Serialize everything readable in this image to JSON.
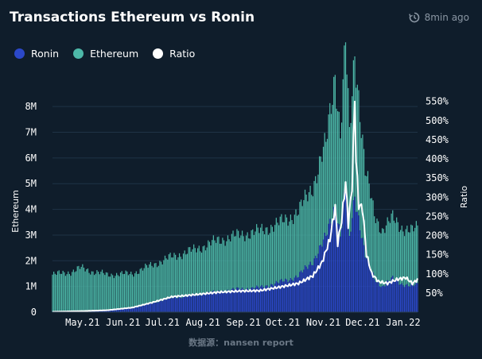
{
  "header": {
    "title": "Transactions Ethereum vs Ronin",
    "updated": "8min ago",
    "updated_icon": "history-icon"
  },
  "source": "数据源：nansen report",
  "colors": {
    "background": "#0f1d2b",
    "ronin": "#2b48c9",
    "ethereum": "#4db8a8",
    "ratio": "#ffffff",
    "grid": "#1f3346"
  },
  "chart_data": {
    "type": "bar",
    "stacked": true,
    "title": "Transactions Ethereum vs Ronin",
    "y_left": {
      "label": "Ethereum",
      "ticks": [
        "0",
        "1M",
        "2M",
        "3M",
        "4M",
        "5M",
        "6M",
        "7M",
        "8M"
      ],
      "range": [
        0,
        8500000
      ]
    },
    "y_right": {
      "label": "Ratio",
      "ticks": [
        "50%",
        "100%",
        "150%",
        "200%",
        "250%",
        "300%",
        "350%",
        "400%",
        "450%",
        "500%",
        "550%"
      ],
      "range": [
        0,
        570
      ]
    },
    "x_ticks": [
      "May.21",
      "Jun.21",
      "Jul.21",
      "Aug.21",
      "Sep.21",
      "Oct.21",
      "Nov.21",
      "Dec.21",
      "Jan.22"
    ],
    "x_range": [
      "2021-04-20",
      "2022-01-24"
    ],
    "grid": true,
    "legend_position": "top-left",
    "series": [
      {
        "name": "Ronin",
        "kind": "bar",
        "keypoints": [
          [
            "2021-04-20",
            10000
          ],
          [
            "2021-05-15",
            30000
          ],
          [
            "2021-06-01",
            60000
          ],
          [
            "2021-06-20",
            150000
          ],
          [
            "2021-07-05",
            350000
          ],
          [
            "2021-07-20",
            550000
          ],
          [
            "2021-08-05",
            650000
          ],
          [
            "2021-08-25",
            800000
          ],
          [
            "2021-09-10",
            900000
          ],
          [
            "2021-09-25",
            950000
          ],
          [
            "2021-10-10",
            1150000
          ],
          [
            "2021-10-25",
            1400000
          ],
          [
            "2021-11-05",
            2000000
          ],
          [
            "2021-11-15",
            2900000
          ],
          [
            "2021-11-22",
            4200000
          ],
          [
            "2021-11-26",
            3000000
          ],
          [
            "2021-11-30",
            4800000
          ],
          [
            "2021-12-03",
            2800000
          ],
          [
            "2021-12-07",
            4600000
          ],
          [
            "2021-12-10",
            3700000
          ],
          [
            "2021-12-15",
            2200000
          ],
          [
            "2021-12-22",
            1300000
          ],
          [
            "2021-12-28",
            1000000
          ],
          [
            "2022-01-05",
            1300000
          ],
          [
            "2022-01-12",
            1100000
          ],
          [
            "2022-01-20",
            1000000
          ],
          [
            "2022-01-24",
            1100000
          ]
        ]
      },
      {
        "name": "Ethereum",
        "kind": "bar",
        "keypoints": [
          [
            "2021-04-20",
            1450000
          ],
          [
            "2021-05-05",
            1550000
          ],
          [
            "2021-05-12",
            1700000
          ],
          [
            "2021-05-20",
            1550000
          ],
          [
            "2021-06-01",
            1400000
          ],
          [
            "2021-06-20",
            1350000
          ],
          [
            "2021-07-01",
            1450000
          ],
          [
            "2021-07-20",
            1600000
          ],
          [
            "2021-08-05",
            1750000
          ],
          [
            "2021-08-25",
            2000000
          ],
          [
            "2021-09-10",
            2100000
          ],
          [
            "2021-09-25",
            2200000
          ],
          [
            "2021-10-10",
            2300000
          ],
          [
            "2021-10-25",
            2500000
          ],
          [
            "2021-11-05",
            2950000
          ],
          [
            "2021-11-15",
            3600000
          ],
          [
            "2021-11-22",
            5200000
          ],
          [
            "2021-11-26",
            3900000
          ],
          [
            "2021-11-30",
            5700000
          ],
          [
            "2021-12-03",
            4000000
          ],
          [
            "2021-12-07",
            5600000
          ],
          [
            "2021-12-10",
            4800000
          ],
          [
            "2021-12-15",
            3300000
          ],
          [
            "2021-12-22",
            2500000
          ],
          [
            "2021-12-28",
            2200000
          ],
          [
            "2022-01-05",
            2350000
          ],
          [
            "2022-01-12",
            2200000
          ],
          [
            "2022-01-20",
            2150000
          ],
          [
            "2022-01-24",
            2200000
          ]
        ]
      },
      {
        "name": "Ratio",
        "kind": "line",
        "axis": "right",
        "keypoints": [
          [
            "2021-04-20",
            1
          ],
          [
            "2021-05-15",
            3
          ],
          [
            "2021-06-01",
            5
          ],
          [
            "2021-06-20",
            12
          ],
          [
            "2021-07-05",
            25
          ],
          [
            "2021-07-20",
            40
          ],
          [
            "2021-08-05",
            45
          ],
          [
            "2021-08-25",
            52
          ],
          [
            "2021-09-10",
            55
          ],
          [
            "2021-09-25",
            56
          ],
          [
            "2021-10-10",
            65
          ],
          [
            "2021-10-25",
            75
          ],
          [
            "2021-11-05",
            95
          ],
          [
            "2021-11-12",
            130
          ],
          [
            "2021-11-18",
            190
          ],
          [
            "2021-11-22",
            275
          ],
          [
            "2021-11-24",
            180
          ],
          [
            "2021-11-27",
            240
          ],
          [
            "2021-11-30",
            340
          ],
          [
            "2021-12-02",
            230
          ],
          [
            "2021-12-05",
            330
          ],
          [
            "2021-12-07",
            560
          ],
          [
            "2021-12-08",
            400
          ],
          [
            "2021-12-10",
            280
          ],
          [
            "2021-12-13",
            270
          ],
          [
            "2021-12-16",
            150
          ],
          [
            "2021-12-20",
            100
          ],
          [
            "2021-12-25",
            80
          ],
          [
            "2022-01-01",
            75
          ],
          [
            "2022-01-08",
            85
          ],
          [
            "2022-01-15",
            90
          ],
          [
            "2022-01-20",
            75
          ],
          [
            "2022-01-24",
            85
          ]
        ]
      }
    ]
  }
}
